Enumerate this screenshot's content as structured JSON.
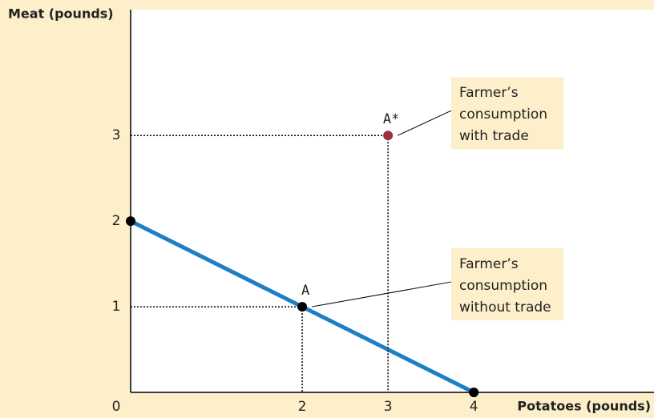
{
  "chart_data": {
    "type": "line",
    "x_label": "Potatoes (pounds)",
    "y_label": "Meat (pounds)",
    "xlim": [
      0,
      6.1
    ],
    "ylim": [
      0,
      4.47
    ],
    "xticks": [
      0,
      2,
      3,
      4
    ],
    "yticks": [
      1,
      2,
      3
    ],
    "series": [
      {
        "color": "#1f7fc4",
        "x": [
          0,
          4
        ],
        "values": [
          2,
          0
        ]
      }
    ],
    "points": [
      {
        "x": 0,
        "y": 2,
        "color": "#000000"
      },
      {
        "x": 2,
        "y": 1,
        "color": "#000000",
        "label": "A",
        "annotation": [
          "Farmer’s",
          "consumption",
          "without trade"
        ]
      },
      {
        "x": 3,
        "y": 3,
        "color": "#9b2f3f",
        "label": "A*",
        "annotation": [
          "Farmer’s",
          "consumption",
          "with trade"
        ]
      },
      {
        "x": 4,
        "y": 0,
        "color": "#000000"
      }
    ]
  }
}
